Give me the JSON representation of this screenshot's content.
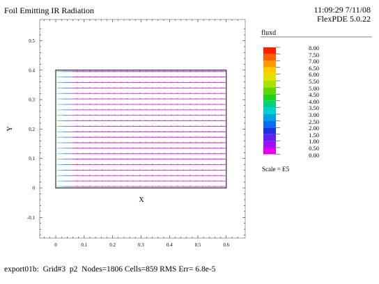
{
  "header": {
    "title": "Foil Emitting IR Radiation",
    "time": "11:09:29 7/11/08",
    "version": "FlexPDE 5.0.22"
  },
  "plot": {
    "xlabel": "X",
    "ylabel": "Y",
    "x_ticks": [
      "0",
      "0.1",
      "0.2",
      "0.3",
      "0.4",
      "0.5",
      "0.6"
    ],
    "y_ticks": [
      "0.5",
      "0.4",
      "0.3",
      "0.2",
      "0.1",
      "0",
      "-0.1"
    ],
    "x_range": [
      -0.07,
      0.67
    ],
    "y_range": [
      -0.17,
      0.56
    ],
    "domain_box": {
      "x": [
        0,
        0.6
      ],
      "y": [
        0,
        0.4
      ]
    },
    "flow_line_count": 22
  },
  "legend": {
    "variable": "fluxd",
    "labels": [
      "8.00",
      "7.50",
      "7.00",
      "6.50",
      "6.00",
      "5.50",
      "5.00",
      "4.50",
      "4.00",
      "3.50",
      "3.00",
      "2.50",
      "2.00",
      "1.50",
      "1.00",
      "0.50",
      "0.00"
    ],
    "colors": [
      "#ff2000",
      "#ff6000",
      "#ff9800",
      "#ffcc00",
      "#e0e000",
      "#a8e000",
      "#60d800",
      "#20d020",
      "#00d080",
      "#00d0d0",
      "#00a0e0",
      "#0070f0",
      "#2030e0",
      "#6020f0",
      "#a010f0",
      "#e000f0"
    ],
    "scale_note": "Scale = E5"
  },
  "footer": {
    "text": "export01b:  Grid#3  p2  Nodes=1806 Cells=859 RMS Err= 6.8e-5"
  }
}
